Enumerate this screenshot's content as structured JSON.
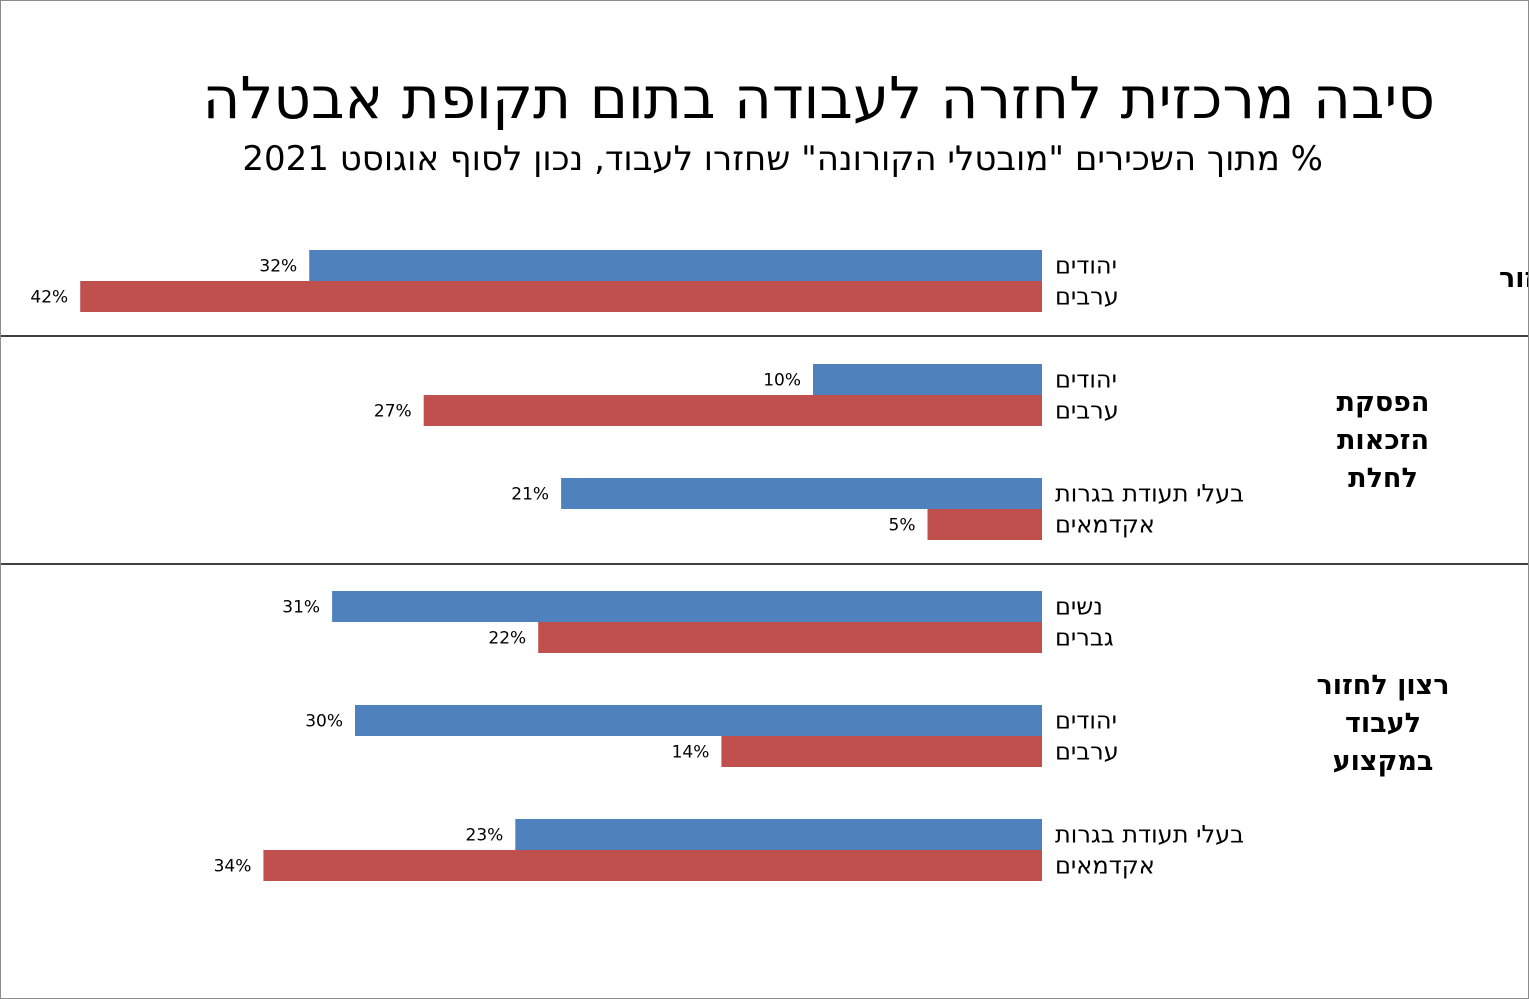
{
  "title": "סיבה מרכזית לחזרה לעבודה בתום תקופת אבטלה",
  "subtitle": "% מתוך השכירים \"מובטלי הקורונה\" שחזרו לעבוד, נכון לסוף אוגוסט 2021",
  "colors": {
    "first": "#4F81BD",
    "second": "#C0504D",
    "divider": "#000000"
  },
  "chart_data": {
    "type": "bar",
    "orientation": "horizontal",
    "direction": "right-to-left",
    "value_format": "percent",
    "xlim": [
      0,
      42
    ],
    "grid": false,
    "legend": "none",
    "groups": [
      {
        "label": [
          "המעסיק ביקש לחזור"
        ],
        "pairs": [
          {
            "first": {
              "label": "יהודים",
              "value": 32
            },
            "second": {
              "label": "ערבים",
              "value": 42
            }
          }
        ]
      },
      {
        "label": [
          "הפסקת",
          "הזכאות",
          "לחלת"
        ],
        "pairs": [
          {
            "first": {
              "label": "יהודים",
              "value": 10
            },
            "second": {
              "label": "ערבים",
              "value": 27
            }
          },
          {
            "first": {
              "label": "בעלי תעודת בגרות",
              "value": 21
            },
            "second": {
              "label": "אקדמאים",
              "value": 5
            }
          }
        ]
      },
      {
        "label": [
          "רצון לחזור",
          "לעבוד",
          "במקצוע"
        ],
        "pairs": [
          {
            "first": {
              "label": "נשים",
              "value": 31
            },
            "second": {
              "label": "גברים",
              "value": 22
            }
          },
          {
            "first": {
              "label": "יהודים",
              "value": 30
            },
            "second": {
              "label": "ערבים",
              "value": 14
            }
          },
          {
            "first": {
              "label": "בעלי תעודת בגרות",
              "value": 23
            },
            "second": {
              "label": "אקדמאים",
              "value": 34
            }
          }
        ]
      }
    ]
  }
}
